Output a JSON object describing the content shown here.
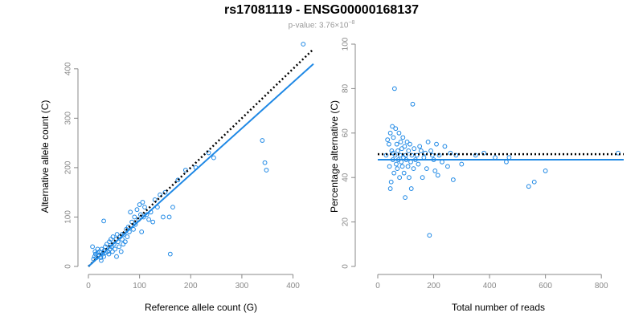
{
  "title": "rs17081119 - ENSG00000168137",
  "subtitle": {
    "prefix": "p-value: 3.76×10",
    "exponent": "−8"
  },
  "colors": {
    "points": "#1e88e5",
    "fit": "#1e88e5",
    "reference": "#000000",
    "ticks": "#888888"
  },
  "chart_data": [
    {
      "type": "scatter",
      "xlabel": "Reference allele count (G)",
      "ylabel": "Alternative allele count (C)",
      "xlim": [
        0,
        440
      ],
      "ylim": [
        0,
        450
      ],
      "xticks": [
        0,
        100,
        200,
        300,
        400
      ],
      "yticks": [
        0,
        100,
        200,
        300,
        400
      ],
      "reference_line": {
        "style": "dotted",
        "x": [
          0,
          440
        ],
        "y": [
          0,
          440
        ]
      },
      "fit_line": {
        "style": "solid",
        "x": [
          0,
          440
        ],
        "y": [
          0,
          410
        ]
      },
      "points": [
        [
          10,
          15
        ],
        [
          12,
          20
        ],
        [
          14,
          25
        ],
        [
          16,
          18
        ],
        [
          18,
          28
        ],
        [
          20,
          22
        ],
        [
          22,
          30
        ],
        [
          24,
          18
        ],
        [
          26,
          35
        ],
        [
          28,
          25
        ],
        [
          30,
          20
        ],
        [
          31,
          32
        ],
        [
          33,
          40
        ],
        [
          34,
          28
        ],
        [
          36,
          45
        ],
        [
          38,
          30
        ],
        [
          40,
          25
        ],
        [
          41,
          50
        ],
        [
          42,
          35
        ],
        [
          44,
          55
        ],
        [
          45,
          40
        ],
        [
          47,
          30
        ],
        [
          48,
          60
        ],
        [
          50,
          45
        ],
        [
          52,
          35
        ],
        [
          54,
          55
        ],
        [
          56,
          65
        ],
        [
          58,
          50
        ],
        [
          60,
          40
        ],
        [
          62,
          60
        ],
        [
          64,
          30
        ],
        [
          66,
          55
        ],
        [
          68,
          45
        ],
        [
          70,
          65
        ],
        [
          72,
          50
        ],
        [
          74,
          75
        ],
        [
          76,
          60
        ],
        [
          78,
          80
        ],
        [
          80,
          70
        ],
        [
          82,
          110
        ],
        [
          85,
          90
        ],
        [
          88,
          75
        ],
        [
          90,
          100
        ],
        [
          92,
          85
        ],
        [
          95,
          115
        ],
        [
          98,
          95
        ],
        [
          100,
          125
        ],
        [
          102,
          105
        ],
        [
          104,
          70
        ],
        [
          106,
          130
        ],
        [
          108,
          100
        ],
        [
          110,
          120
        ],
        [
          114,
          105
        ],
        [
          118,
          95
        ],
        [
          122,
          110
        ],
        [
          126,
          90
        ],
        [
          130,
          135
        ],
        [
          135,
          120
        ],
        [
          140,
          145
        ],
        [
          146,
          100
        ],
        [
          150,
          150
        ],
        [
          158,
          100
        ],
        [
          160,
          25
        ],
        [
          165,
          120
        ],
        [
          175,
          175
        ],
        [
          190,
          195
        ],
        [
          210,
          200
        ],
        [
          235,
          230
        ],
        [
          245,
          220
        ],
        [
          340,
          255
        ],
        [
          345,
          210
        ],
        [
          348,
          195
        ],
        [
          420,
          450
        ],
        [
          8,
          40
        ],
        [
          30,
          92
        ],
        [
          13,
          30
        ],
        [
          25,
          12
        ],
        [
          55,
          20
        ],
        [
          66,
          65
        ],
        [
          18,
          35
        ]
      ]
    },
    {
      "type": "scatter",
      "xlabel": "Total number of reads",
      "ylabel": "Percentage alternative (C)",
      "xlim": [
        0,
        880
      ],
      "ylim": [
        0,
        100
      ],
      "xticks": [
        0,
        200,
        400,
        600,
        800
      ],
      "yticks": [
        0,
        20,
        40,
        60,
        80,
        100
      ],
      "reference_line": {
        "style": "dotted",
        "y": 50.5
      },
      "fit_line": {
        "style": "solid",
        "y": 48
      },
      "points": [
        [
          40,
          55
        ],
        [
          42,
          45
        ],
        [
          45,
          60
        ],
        [
          48,
          38
        ],
        [
          50,
          52
        ],
        [
          52,
          63
        ],
        [
          54,
          48
        ],
        [
          56,
          58
        ],
        [
          58,
          42
        ],
        [
          60,
          80
        ],
        [
          62,
          50
        ],
        [
          64,
          62
        ],
        [
          66,
          46
        ],
        [
          68,
          55
        ],
        [
          70,
          44
        ],
        [
          72,
          52
        ],
        [
          74,
          48
        ],
        [
          76,
          60
        ],
        [
          78,
          40
        ],
        [
          80,
          50
        ],
        [
          82,
          56
        ],
        [
          84,
          47
        ],
        [
          86,
          53
        ],
        [
          88,
          45
        ],
        [
          90,
          58
        ],
        [
          92,
          49
        ],
        [
          94,
          42
        ],
        [
          96,
          54
        ],
        [
          98,
          31
        ],
        [
          100,
          50
        ],
        [
          102,
          48
        ],
        [
          105,
          56
        ],
        [
          108,
          45
        ],
        [
          110,
          52
        ],
        [
          112,
          40
        ],
        [
          115,
          55
        ],
        [
          118,
          47
        ],
        [
          120,
          35
        ],
        [
          122,
          50
        ],
        [
          125,
          73
        ],
        [
          128,
          44
        ],
        [
          130,
          53
        ],
        [
          135,
          48
        ],
        [
          140,
          50
        ],
        [
          145,
          46
        ],
        [
          150,
          54
        ],
        [
          155,
          52
        ],
        [
          160,
          40
        ],
        [
          165,
          49
        ],
        [
          170,
          51
        ],
        [
          175,
          44
        ],
        [
          180,
          56
        ],
        [
          185,
          14
        ],
        [
          190,
          52
        ],
        [
          195,
          50
        ],
        [
          200,
          48
        ],
        [
          205,
          43
        ],
        [
          210,
          55
        ],
        [
          215,
          41
        ],
        [
          220,
          50
        ],
        [
          230,
          47
        ],
        [
          240,
          54
        ],
        [
          250,
          45
        ],
        [
          260,
          51
        ],
        [
          270,
          39
        ],
        [
          280,
          50
        ],
        [
          300,
          46
        ],
        [
          350,
          50
        ],
        [
          380,
          51
        ],
        [
          420,
          49
        ],
        [
          460,
          47
        ],
        [
          470,
          49
        ],
        [
          540,
          36
        ],
        [
          560,
          38
        ],
        [
          600,
          43
        ],
        [
          860,
          51
        ],
        [
          30,
          50
        ],
        [
          35,
          57
        ],
        [
          45,
          35
        ],
        [
          55,
          51
        ]
      ]
    }
  ]
}
